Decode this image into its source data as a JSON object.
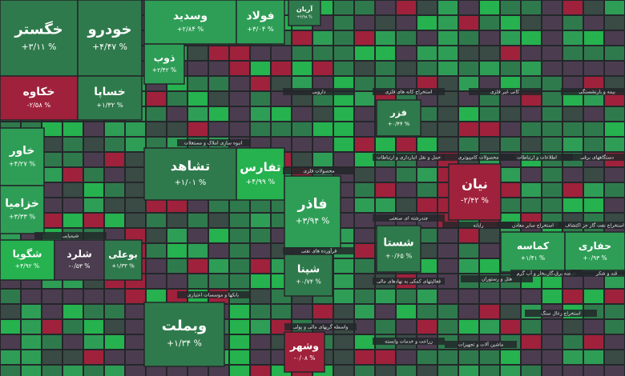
{
  "tiles": [
    {
      "name": "خگستر",
      "change": "+۳/۱۱ %",
      "color": "#2f7a4c"
    },
    {
      "name": "خودرو",
      "change": "+۴/۴۷ %",
      "color": "#2f7a4c"
    },
    {
      "name": "خکاوه",
      "change": "-۲/۵۸ %",
      "color": "#a0213b"
    },
    {
      "name": "خساپا",
      "change": "+۱/۳۲ %",
      "color": "#2f7a4c"
    },
    {
      "name": "خاور",
      "change": "+۴/۲۷ %",
      "color": "#2e9e56"
    },
    {
      "name": "خزامیا",
      "change": "+۳/۳۳ %",
      "color": "#2e9e56"
    },
    {
      "name": "شگویا",
      "change": "+۴/۹۲ %",
      "color": "#25b24f"
    },
    {
      "name": "شلرد",
      "change": "-۰/۵۳ %",
      "color": "#4b3d4f"
    },
    {
      "name": "بوعلی",
      "change": "+۱/۳۳ %",
      "color": "#2f7a4c"
    },
    {
      "name": "وسدید",
      "change": "+۲/۸۴ %",
      "color": "#2e9e56"
    },
    {
      "name": "فولاد",
      "change": "+۳/۰۴ %",
      "color": "#2e9e56"
    },
    {
      "name": "ذوب",
      "change": "+۲/۴۲ %",
      "color": "#2e9e56"
    },
    {
      "name": "تشاهد",
      "change": "+۱/۰۱ %",
      "color": "#2f7a4c"
    },
    {
      "name": "تفارس",
      "change": "+۴/۹۹ %",
      "color": "#25b24f"
    },
    {
      "name": "وبملت",
      "change": "+۱/۳۴ %",
      "color": "#2f7a4c"
    },
    {
      "name": "فاذر",
      "change": "+۳/۹۴ %",
      "color": "#2e9e56"
    },
    {
      "name": "شپنا",
      "change": "+۰/۷۴ %",
      "color": "#2f7a4c"
    },
    {
      "name": "وشهر",
      "change": "-۰/۰۸ %",
      "color": "#a0213b"
    },
    {
      "name": "فزر",
      "change": "+۰/۴۴ %",
      "color": "#2f7a4c"
    },
    {
      "name": "شستا",
      "change": "+۰/۶۵ %",
      "color": "#2f7a4c"
    },
    {
      "name": "نیان",
      "change": "-۲/۴۲ %",
      "color": "#a0213b"
    },
    {
      "name": "کماسه",
      "change": "+۱/۴۱ %",
      "color": "#2e9e56"
    },
    {
      "name": "حفاری",
      "change": "+۰/۹۳ %",
      "color": "#2e9e56"
    },
    {
      "name": "آریان",
      "change": "+۴/۹۸ %",
      "color": "#2f7a4c"
    }
  ],
  "sectors": [
    "انبوه سازی املاک و مستغلات",
    "شیمیایی",
    "بانکها و موسسات اعتباری",
    "محصولات فلزی",
    "فرآورده های نفتی",
    "واسطه گریهای مالی و پولی",
    "دارویی",
    "استخراج کانه های فلزی",
    "کانی غیر فلزی",
    "بیمه و بازنشستگی",
    "حمل و نقل انبارداری و ارتباطات",
    "محصولات کامپیوتری",
    "اطلاعات و ارتباطات",
    "دستگاههای برقی",
    "چندرشته ای صنعتی",
    "رایانه",
    "استخراج سایر معادن",
    "استخراج نفت گاز جز اکتشاف",
    "فعالیتهای کمکی به نهادهای مالی",
    "هتل و رستوران",
    "عرضه برق،گاز،بخار و آب گرم",
    "قند و شکر",
    "زراعت و خدمات وابسته",
    "ماشین آلات و تجهیزات",
    "استخراج زغال سنگ"
  ]
}
